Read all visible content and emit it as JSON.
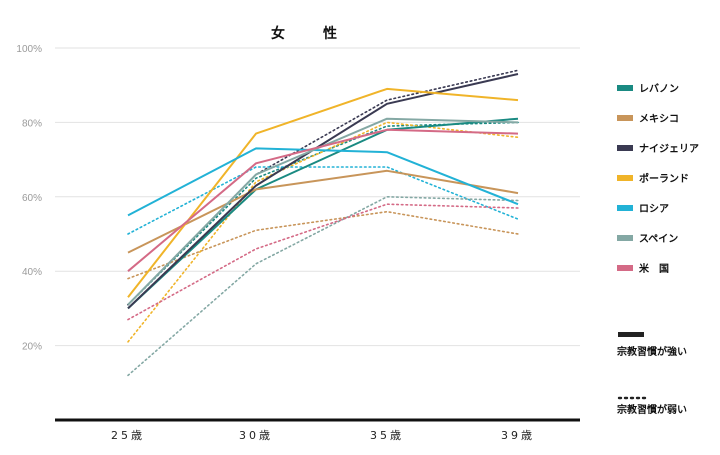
{
  "chart_data": {
    "type": "line",
    "title": "女　性",
    "categories": [
      "25歳",
      "30歳",
      "35歳",
      "39歳"
    ],
    "ylim": [
      0,
      100
    ],
    "yticks": [
      20,
      40,
      60,
      80,
      100
    ],
    "ytick_labels": [
      "20%",
      "40%",
      "60%",
      "80%",
      "100%"
    ],
    "grid": true,
    "legend_position": "right",
    "line_styles": [
      {
        "key": "strong",
        "label": "宗教習慣が強い",
        "dash": "solid"
      },
      {
        "key": "weak",
        "label": "宗教習慣が弱い",
        "dash": "dotted"
      }
    ],
    "series": [
      {
        "name": "レバノン",
        "color": "#1a8a82",
        "strong": [
          30,
          62,
          78,
          81
        ],
        "weak": [
          31,
          65,
          79,
          80
        ]
      },
      {
        "name": "メキシコ",
        "color": "#c8955a",
        "strong": [
          45,
          62,
          67,
          61
        ],
        "weak": [
          38,
          51,
          56,
          50
        ]
      },
      {
        "name": "ナイジェリア",
        "color": "#3a3a52",
        "strong": [
          30,
          63,
          85,
          93
        ],
        "weak": [
          31,
          66,
          86,
          94
        ]
      },
      {
        "name": "ポーランド",
        "color": "#f0b429",
        "strong": [
          33,
          77,
          89,
          86
        ],
        "weak": [
          21,
          64,
          80,
          76
        ]
      },
      {
        "name": "ロシア",
        "color": "#22b2d6",
        "strong": [
          55,
          73,
          72,
          58
        ],
        "weak": [
          50,
          68,
          68,
          54
        ]
      },
      {
        "name": "スペイン",
        "color": "#84a8a4",
        "strong": [
          31,
          66,
          81,
          80
        ],
        "weak": [
          12,
          42,
          60,
          59
        ]
      },
      {
        "name": "米　国",
        "color": "#d46a86",
        "strong": [
          40,
          69,
          78,
          77
        ],
        "weak": [
          27,
          46,
          58,
          57
        ]
      }
    ]
  }
}
